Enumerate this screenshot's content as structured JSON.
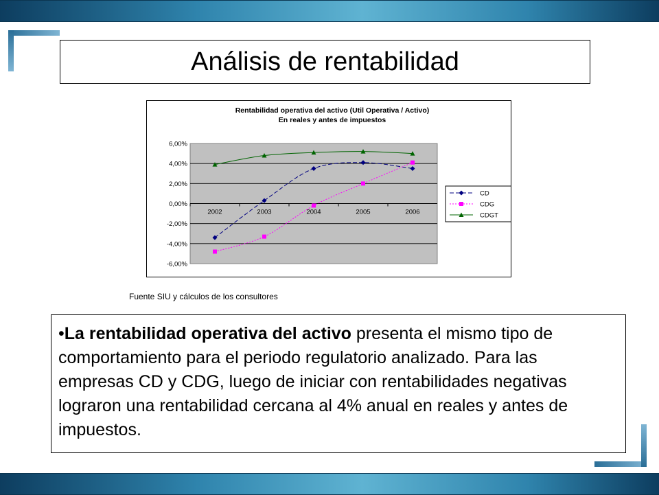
{
  "slide": {
    "title": "Análisis de rentabilidad",
    "source": "Fuente SIU y cálculos de los consultores",
    "bullet": {
      "marker": "•",
      "bold_text": "La rentabilidad operativa del activo",
      "rest_text": " presenta el mismo tipo de comportamiento para el periodo regulatorio analizado. Para las empresas CD y CDG, luego de iniciar con rentabilidades negativas lograron una rentabilidad cercana al 4% anual en reales y antes de impuestos."
    }
  },
  "colors": {
    "band_gradient": [
      "#0d3d5f",
      "#2f84ad",
      "#5fb3d2"
    ],
    "plot_background": "#c0c0c0",
    "CD": "#000080",
    "CDG": "#ff00ff",
    "CDGT": "#006400"
  },
  "chart_data": {
    "type": "line",
    "title": "Rentabilidad operativa del activo (Util Operativa / Activo)",
    "subtitle": "En reales y antes de impuestos",
    "categories": [
      "2002",
      "2003",
      "2004",
      "2005",
      "2006"
    ],
    "series": [
      {
        "name": "CD",
        "values": [
          -3.4,
          0.3,
          3.5,
          4.1,
          3.5
        ],
        "color": "#000080",
        "line": "dashed",
        "marker": "diamond"
      },
      {
        "name": "CDG",
        "values": [
          -4.8,
          -3.3,
          -0.2,
          2.0,
          4.1
        ],
        "color": "#ff00ff",
        "line": "dotted",
        "marker": "square"
      },
      {
        "name": "CDGT",
        "values": [
          3.9,
          4.8,
          5.1,
          5.2,
          5.0
        ],
        "color": "#006400",
        "line": "solid",
        "marker": "triangle"
      }
    ],
    "yticks": [
      "6,00%",
      "4,00%",
      "2,00%",
      "0,00%",
      "-2,00%",
      "-4,00%",
      "-6,00%"
    ],
    "ylim": [
      -6,
      6
    ],
    "grid": true,
    "legend": "right"
  }
}
